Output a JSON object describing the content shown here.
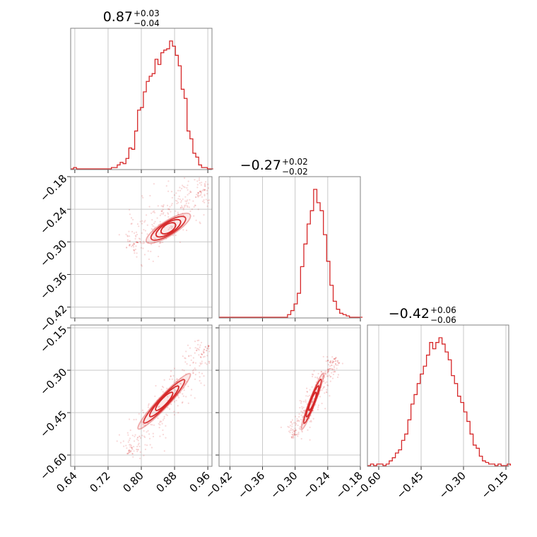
{
  "colors": {
    "accent": "#d62728",
    "grid": "#c8c8c8",
    "frame": "#808080"
  },
  "chart_data": {
    "type": "corner",
    "parameters": [
      "",
      "",
      ""
    ],
    "titles": [
      {
        "value": "0.87",
        "upper": "+0.03",
        "lower": "−0.04"
      },
      {
        "value": "−0.27",
        "upper": "+0.02",
        "lower": "−0.02"
      },
      {
        "value": "−0.42",
        "upper": "+0.06",
        "lower": "−0.06"
      }
    ],
    "ranges": [
      [
        0.63,
        0.97
      ],
      [
        -0.44,
        -0.18
      ],
      [
        -0.64,
        -0.14
      ]
    ],
    "ticks": [
      {
        "values": [
          0.64,
          0.72,
          0.8,
          0.88,
          0.96
        ],
        "labels": [
          "0.64",
          "0.72",
          "0.80",
          "0.88",
          "0.96"
        ]
      },
      {
        "values": [
          -0.42,
          -0.36,
          -0.3,
          -0.24,
          -0.18
        ],
        "labels": [
          "−0.42",
          "−0.36",
          "−0.30",
          "−0.24",
          "−0.18"
        ]
      },
      {
        "values": [
          -0.6,
          -0.45,
          -0.3,
          -0.15
        ],
        "labels": [
          "−0.60",
          "−0.45",
          "−0.30",
          "−0.15"
        ]
      }
    ],
    "histograms": [
      {
        "x": [
          0.63,
          0.637,
          0.644,
          0.651,
          0.658,
          0.665,
          0.672,
          0.679,
          0.686,
          0.693,
          0.7,
          0.707,
          0.714,
          0.721,
          0.728,
          0.735,
          0.742,
          0.749,
          0.756,
          0.763,
          0.77,
          0.777,
          0.784,
          0.791,
          0.798,
          0.805,
          0.812,
          0.819,
          0.826,
          0.833,
          0.84,
          0.847,
          0.854,
          0.861,
          0.868,
          0.875,
          0.882,
          0.889,
          0.896,
          0.903,
          0.91,
          0.917,
          0.924,
          0.931,
          0.938,
          0.945,
          0.952,
          0.959,
          0.966
        ],
        "density": [
          0.0,
          0.01,
          0.0,
          0.0,
          0.0,
          0.0,
          0.0,
          0.0,
          0.0,
          0.0,
          0.0,
          0.0,
          0.0,
          0.0,
          0.01,
          0.01,
          0.03,
          0.05,
          0.04,
          0.08,
          0.16,
          0.15,
          0.29,
          0.45,
          0.47,
          0.59,
          0.67,
          0.71,
          0.73,
          0.84,
          0.8,
          0.89,
          0.91,
          0.92,
          0.98,
          0.94,
          0.87,
          0.79,
          0.61,
          0.54,
          0.29,
          0.23,
          0.12,
          0.09,
          0.03,
          0.01,
          0.01,
          0.0,
          0.0
        ]
      },
      {
        "x": [
          -0.44,
          -0.434,
          -0.428,
          -0.422,
          -0.416,
          -0.41,
          -0.404,
          -0.398,
          -0.392,
          -0.386,
          -0.38,
          -0.374,
          -0.368,
          -0.362,
          -0.356,
          -0.35,
          -0.344,
          -0.338,
          -0.332,
          -0.326,
          -0.32,
          -0.314,
          -0.308,
          -0.302,
          -0.296,
          -0.29,
          -0.284,
          -0.278,
          -0.272,
          -0.266,
          -0.26,
          -0.254,
          -0.248,
          -0.242,
          -0.236,
          -0.23,
          -0.224,
          -0.218,
          -0.212,
          -0.206,
          -0.2,
          -0.194,
          -0.188,
          -0.182
        ],
        "density": [
          0.0,
          0.0,
          0.0,
          0.0,
          0.0,
          0.0,
          0.0,
          0.0,
          0.0,
          0.0,
          0.0,
          0.0,
          0.0,
          0.0,
          0.0,
          0.0,
          0.0,
          0.0,
          0.0,
          0.0,
          0.0,
          0.02,
          0.05,
          0.1,
          0.18,
          0.38,
          0.55,
          0.7,
          0.8,
          0.96,
          0.86,
          0.8,
          0.62,
          0.42,
          0.24,
          0.12,
          0.06,
          0.03,
          0.02,
          0.01,
          0.0,
          0.0,
          0.0,
          0.0
        ]
      },
      {
        "x": [
          -0.64,
          -0.629,
          -0.618,
          -0.607,
          -0.596,
          -0.585,
          -0.574,
          -0.563,
          -0.552,
          -0.541,
          -0.53,
          -0.519,
          -0.508,
          -0.497,
          -0.486,
          -0.475,
          -0.464,
          -0.453,
          -0.442,
          -0.431,
          -0.42,
          -0.409,
          -0.398,
          -0.387,
          -0.376,
          -0.365,
          -0.354,
          -0.343,
          -0.332,
          -0.321,
          -0.31,
          -0.299,
          -0.288,
          -0.277,
          -0.266,
          -0.255,
          -0.244,
          -0.233,
          -0.222,
          -0.211,
          -0.2,
          -0.189,
          -0.178,
          -0.167,
          -0.156,
          -0.145
        ],
        "density": [
          0.0,
          0.01,
          0.0,
          0.01,
          0.01,
          0.0,
          0.01,
          0.03,
          0.05,
          0.08,
          0.1,
          0.16,
          0.2,
          0.29,
          0.39,
          0.45,
          0.52,
          0.58,
          0.63,
          0.7,
          0.78,
          0.74,
          0.78,
          0.81,
          0.77,
          0.72,
          0.67,
          0.57,
          0.52,
          0.44,
          0.4,
          0.34,
          0.28,
          0.2,
          0.13,
          0.11,
          0.06,
          0.03,
          0.02,
          0.01,
          0.01,
          0.0,
          0.01,
          0.0,
          0.0,
          0.01
        ]
      }
    ],
    "pairs": [
      {
        "row": 1,
        "col": 0,
        "center": [
          0.865,
          -0.275
        ],
        "end_a": [
          0.82,
          -0.295
        ],
        "end_b": [
          0.925,
          -0.245
        ],
        "width": 0.009,
        "tail_a": [
          0.765,
          -0.31
        ],
        "tail_b": [
          0.965,
          -0.19
        ]
      },
      {
        "row": 2,
        "col": 0,
        "center": [
          0.855,
          -0.41
        ],
        "end_a": [
          0.805,
          -0.515
        ],
        "end_b": [
          0.93,
          -0.32
        ],
        "width": 0.012,
        "tail_a": [
          0.765,
          -0.6
        ],
        "tail_b": [
          0.965,
          -0.21
        ]
      },
      {
        "row": 2,
        "col": 1,
        "center": [
          -0.268,
          -0.41
        ],
        "end_a": [
          -0.288,
          -0.51
        ],
        "end_b": [
          -0.248,
          -0.31
        ],
        "width": 0.0045,
        "tail_a": [
          -0.305,
          -0.54
        ],
        "tail_b": [
          -0.225,
          -0.25
        ]
      }
    ]
  }
}
